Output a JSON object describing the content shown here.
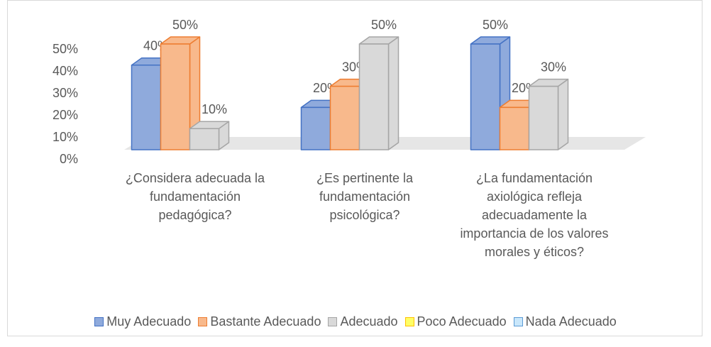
{
  "chart_data": {
    "type": "bar3d",
    "categories": [
      "¿Considera adecuada la fundamentación pedagógica?",
      "¿Es pertinente la fundamentación psicológica?",
      "¿La fundamentación axiológica refleja adecuadamente la importancia de los valores morales y éticos?"
    ],
    "series": [
      {
        "name": "Muy Adecuado",
        "color": "#8faadc",
        "border_color": "#4472c4",
        "values": [
          40,
          20,
          50
        ],
        "value_labels": [
          "40%",
          "20%",
          "50%"
        ]
      },
      {
        "name": "Bastante Adecuado",
        "color": "#f8b98c",
        "border_color": "#ed7d31",
        "values": [
          50,
          30,
          20
        ],
        "value_labels": [
          "50%",
          "30%",
          "20%"
        ]
      },
      {
        "name": "Adecuado",
        "color": "#d9d9d9",
        "border_color": "#a5a5a5",
        "values": [
          10,
          50,
          30
        ],
        "value_labels": [
          "10%",
          "50%",
          "30%"
        ]
      },
      {
        "name": "Poco Adecuado",
        "color": "#ffff66",
        "border_color": "#ffc000",
        "values": [
          null,
          null,
          null
        ]
      },
      {
        "name": "Nada Adecuado",
        "color": "#c9e7fb",
        "border_color": "#5b9bd5",
        "values": [
          null,
          null,
          null
        ]
      }
    ],
    "ylim": [
      0,
      50
    ],
    "yticks": [
      {
        "value": 0,
        "label": "0%"
      },
      {
        "value": 10,
        "label": "10%"
      },
      {
        "value": 20,
        "label": "20%"
      },
      {
        "value": 30,
        "label": "30%"
      },
      {
        "value": 40,
        "label": "40%"
      },
      {
        "value": 50,
        "label": "50%"
      }
    ],
    "legend": "bottom"
  }
}
